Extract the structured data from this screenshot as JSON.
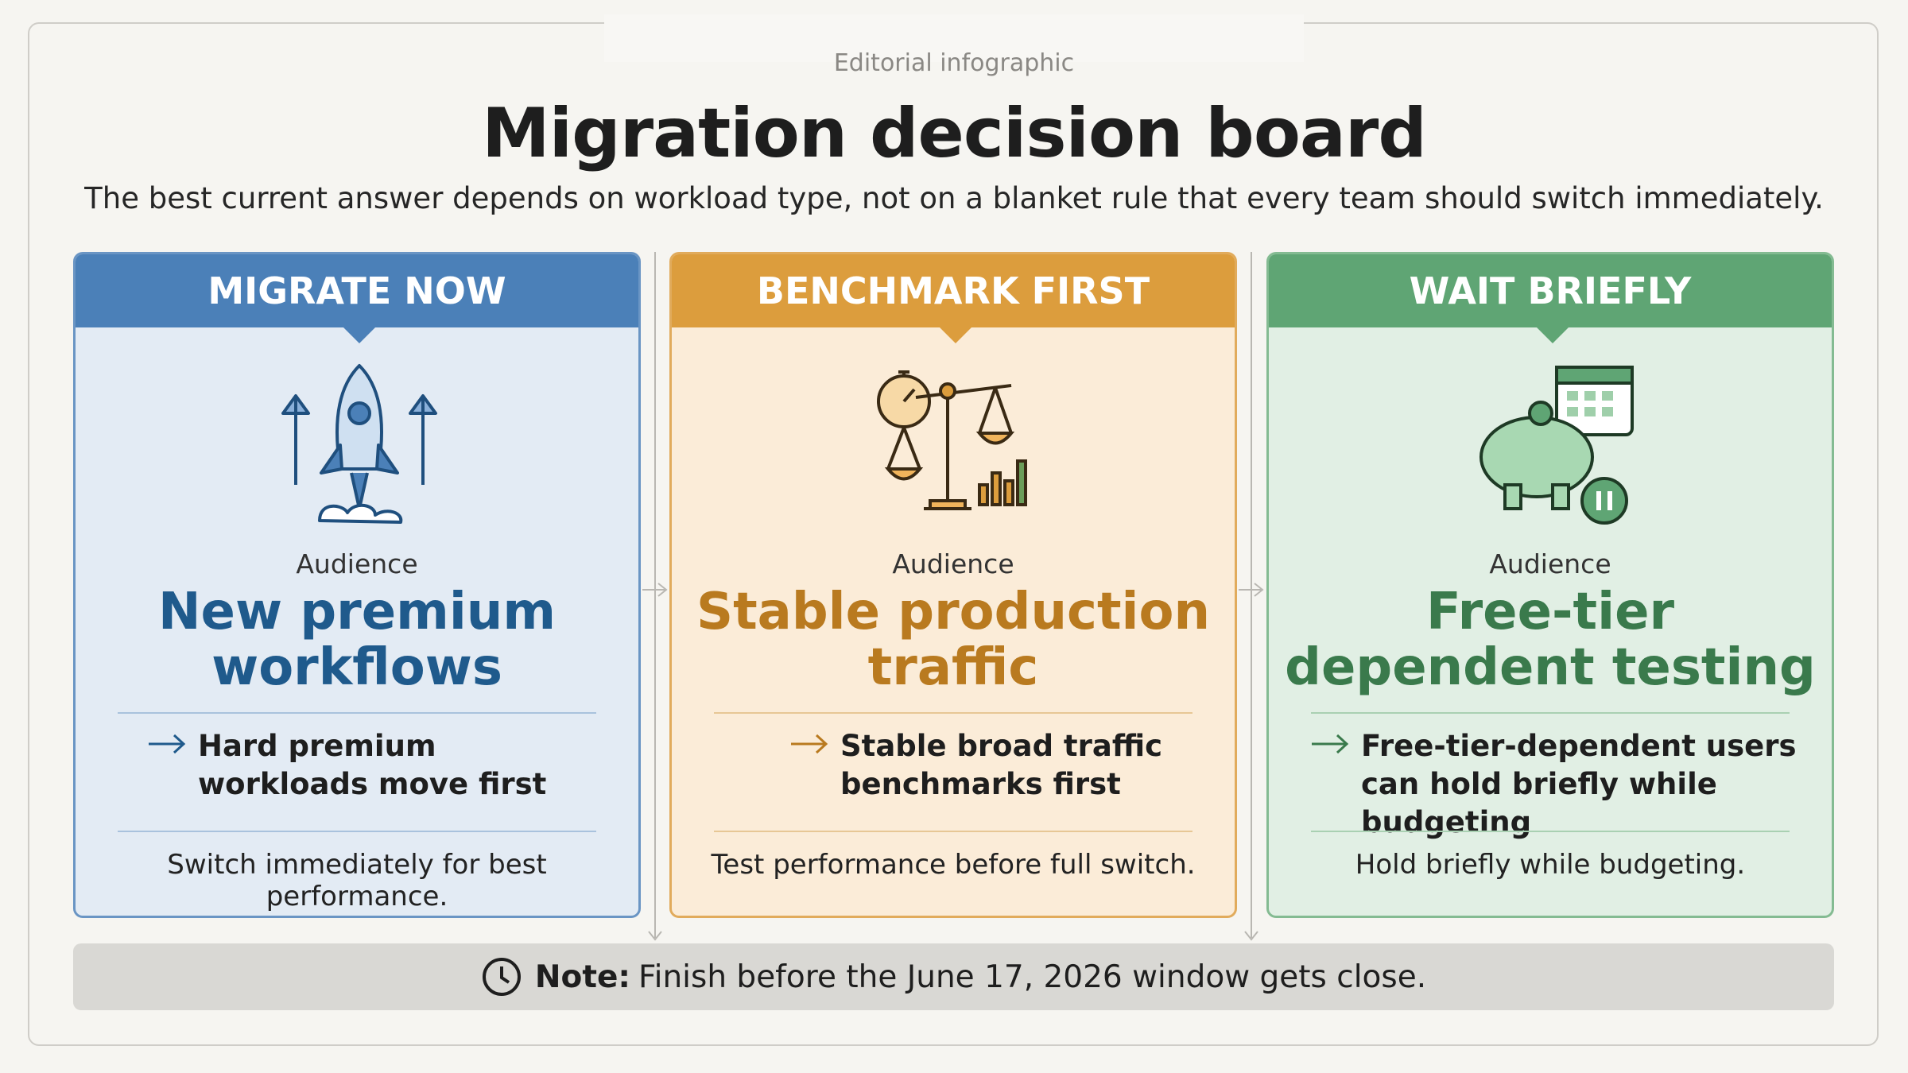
{
  "header": {
    "kicker": "Editorial infographic",
    "title": "Migration decision board",
    "subtitle": "The best current answer depends on workload type, not on a blanket rule that every team should switch immediately."
  },
  "columns": [
    {
      "label": "MIGRATE NOW",
      "audience_label": "Audience",
      "audience": "New premium workflows",
      "point": "Hard premium workloads move first",
      "summary": "Switch immediately for best performance."
    },
    {
      "label": "BENCHMARK FIRST",
      "audience_label": "Audience",
      "audience": "Stable production traffic",
      "point": "Stable broad traffic benchmarks first",
      "summary": "Test performance before full switch."
    },
    {
      "label": "WAIT BRIEFLY",
      "audience_label": "Audience",
      "audience": "Free-tier dependent testing",
      "point": "Free-tier-dependent users can hold briefly while budgeting",
      "summary": "Hold briefly while budgeting."
    }
  ],
  "note": {
    "label": "Note:",
    "text": "Finish before the June 17, 2026 window gets close."
  }
}
